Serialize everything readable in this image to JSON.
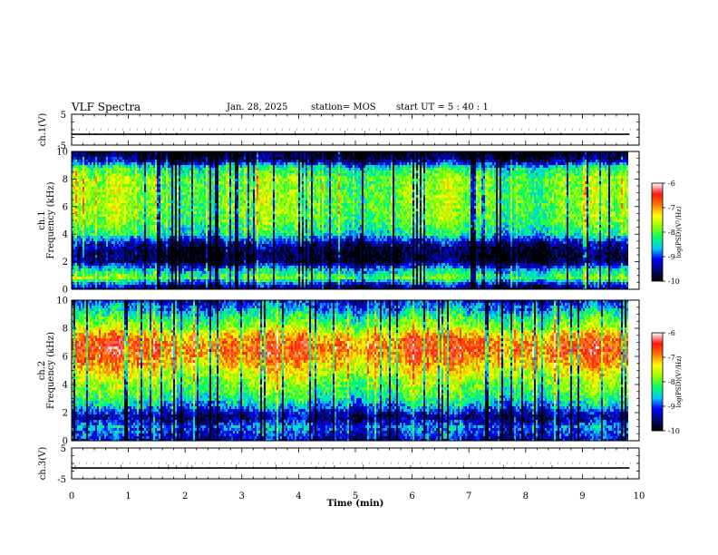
{
  "header": {
    "title": "VLF Spectra",
    "date": "Jan. 28, 2025",
    "station": "station= MOS",
    "start_ut": "start UT =  5 : 40 : 1"
  },
  "chart_data": {
    "type": "heatmap",
    "xlabel": "Time (min)",
    "xlim": [
      0,
      10
    ],
    "xticks": [
      0,
      1,
      2,
      3,
      4,
      5,
      6,
      7,
      8,
      9,
      10
    ],
    "data_end_min": 9.83,
    "panels": [
      {
        "id": "ch1-voltage",
        "type": "line",
        "ylabel": "ch.1(V)",
        "ylim": [
          -5,
          5
        ],
        "yticks": [
          "5",
          "-5"
        ],
        "trace_level_v": -1.5
      },
      {
        "id": "ch1-spectrogram",
        "type": "heatmap",
        "ylabel": [
          "ch.1",
          "Frequency (kHz)"
        ],
        "ylim": [
          0,
          10
        ],
        "yticks": [
          0,
          2,
          4,
          6,
          8,
          10
        ],
        "colorbar": {
          "label": "log(PSD)(V²/Hz)",
          "range": [
            -10,
            -6
          ],
          "ticks": [
            -6,
            -7,
            -8,
            -9,
            -10
          ]
        }
      },
      {
        "id": "ch2-spectrogram",
        "type": "heatmap",
        "ylabel": [
          "ch.2",
          "Frequency (kHz)"
        ],
        "ylim": [
          0,
          10
        ],
        "yticks": [
          0,
          2,
          4,
          6,
          8,
          10
        ],
        "colorbar": {
          "label": "log(PSD)(V²/Hz)",
          "range": [
            -10,
            -6
          ],
          "ticks": [
            -6,
            -7,
            -8,
            -9,
            -10
          ]
        }
      },
      {
        "id": "ch3-voltage",
        "type": "line",
        "ylabel": "ch.3(V)",
        "ylim": [
          -5,
          5
        ],
        "yticks": [
          "5",
          "-5"
        ],
        "trace_level_v": -1.5
      }
    ],
    "colormap": [
      "#000000",
      "#000a6e",
      "#0000ff",
      "#00c8ff",
      "#00ff64",
      "#96ff00",
      "#ffff00",
      "#ff7800",
      "#ff1414",
      "#ffffff"
    ],
    "profile_ch1": [
      {
        "f": 0.0,
        "v": -9.6
      },
      {
        "f": 0.3,
        "v": -9.4
      },
      {
        "f": 0.8,
        "v": -8.0
      },
      {
        "f": 1.4,
        "v": -8.6
      },
      {
        "f": 2.0,
        "v": -9.8
      },
      {
        "f": 2.6,
        "v": -9.9
      },
      {
        "f": 3.3,
        "v": -9.5
      },
      {
        "f": 4.0,
        "v": -8.4
      },
      {
        "f": 5.0,
        "v": -8.0
      },
      {
        "f": 6.0,
        "v": -7.9
      },
      {
        "f": 7.0,
        "v": -7.9
      },
      {
        "f": 8.0,
        "v": -7.9
      },
      {
        "f": 8.8,
        "v": -8.3
      },
      {
        "f": 9.3,
        "v": -9.5
      },
      {
        "f": 9.7,
        "v": -9.9
      },
      {
        "f": 10.0,
        "v": -10.0
      }
    ],
    "profile_ch2": [
      {
        "f": 0.0,
        "v": -9.4
      },
      {
        "f": 0.3,
        "v": -9.2
      },
      {
        "f": 1.0,
        "v": -8.9
      },
      {
        "f": 1.7,
        "v": -9.6
      },
      {
        "f": 2.2,
        "v": -9.0
      },
      {
        "f": 3.0,
        "v": -8.3
      },
      {
        "f": 4.0,
        "v": -7.9
      },
      {
        "f": 5.0,
        "v": -7.4
      },
      {
        "f": 6.0,
        "v": -6.9
      },
      {
        "f": 6.6,
        "v": -6.75
      },
      {
        "f": 7.3,
        "v": -6.95
      },
      {
        "f": 8.0,
        "v": -7.7
      },
      {
        "f": 8.7,
        "v": -8.2
      },
      {
        "f": 9.3,
        "v": -8.7
      },
      {
        "f": 10.0,
        "v": -9.2
      }
    ]
  }
}
